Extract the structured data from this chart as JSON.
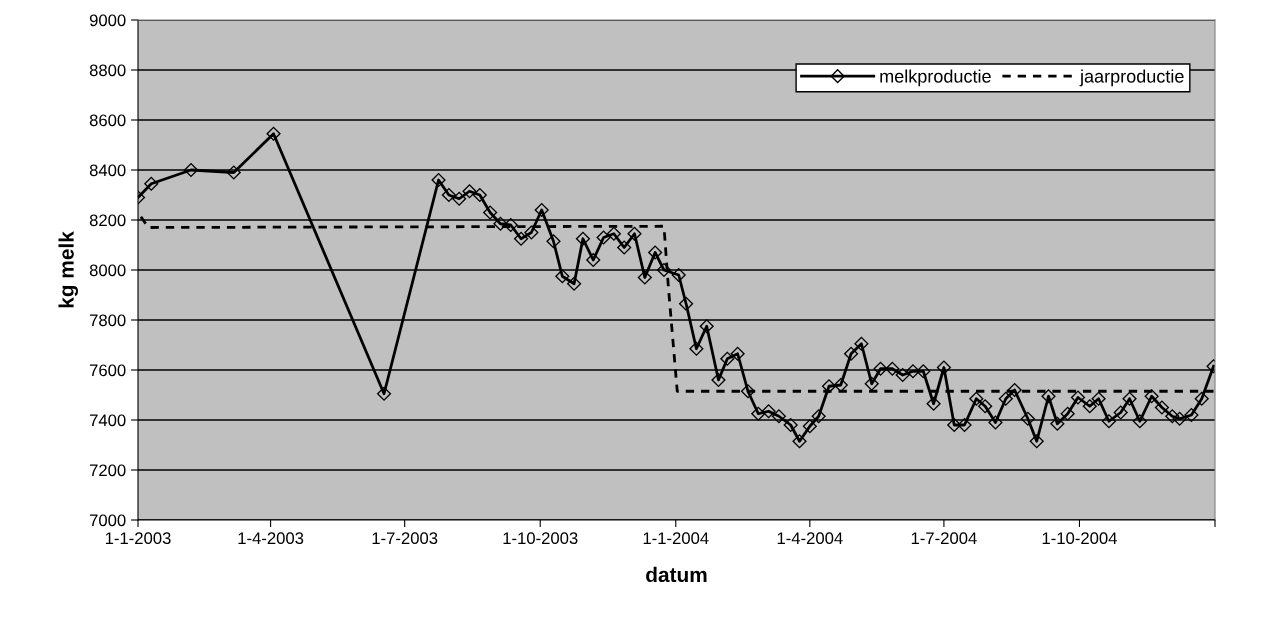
{
  "chart_data": {
    "type": "line",
    "xlabel": "datum",
    "ylabel": "kg melk",
    "xlim": [
      "2003-01-01",
      "2005-01-01"
    ],
    "xticks": [
      {
        "value": "2003-01-01",
        "label": "1-1-2003"
      },
      {
        "value": "2003-04-01",
        "label": "1-4-2003"
      },
      {
        "value": "2003-07-01",
        "label": "1-7-2003"
      },
      {
        "value": "2003-10-01",
        "label": "1-10-2003"
      },
      {
        "value": "2004-01-01",
        "label": "1-1-2004"
      },
      {
        "value": "2004-04-01",
        "label": "1-4-2004"
      },
      {
        "value": "2004-07-01",
        "label": "1-7-2004"
      },
      {
        "value": "2004-10-01",
        "label": "1-10-2004"
      },
      {
        "value": "2005-01-01",
        "label": null
      }
    ],
    "ylim": [
      7000,
      9000
    ],
    "yticks": [
      7000,
      7200,
      7400,
      7600,
      7800,
      8000,
      8200,
      8400,
      8600,
      8800,
      9000
    ],
    "grid": "y",
    "legend": "top right",
    "series": [
      {
        "name": "melkproductie",
        "color": "#000000",
        "marker": "diamond",
        "line_style": "solid",
        "x": [
          "2003-01-01",
          "2003-01-10",
          "2003-02-06",
          "2003-03-07",
          "2003-04-03",
          "2003-06-17",
          "2003-07-24",
          "2003-07-31",
          "2003-08-07",
          "2003-08-14",
          "2003-08-21",
          "2003-08-28",
          "2003-09-04",
          "2003-09-11",
          "2003-09-18",
          "2003-09-25",
          "2003-10-02",
          "2003-10-10",
          "2003-10-16",
          "2003-10-24",
          "2003-10-30",
          "2003-11-06",
          "2003-11-13",
          "2003-11-20",
          "2003-11-27",
          "2003-12-04",
          "2003-12-11",
          "2003-12-18",
          "2003-12-24",
          "2004-01-03",
          "2004-01-08",
          "2004-01-15",
          "2004-01-22",
          "2004-01-30",
          "2004-02-05",
          "2004-02-12",
          "2004-02-19",
          "2004-02-26",
          "2004-03-04",
          "2004-03-11",
          "2004-03-19",
          "2004-03-25",
          "2004-04-01",
          "2004-04-07",
          "2004-04-14",
          "2004-04-22",
          "2004-04-29",
          "2004-05-06",
          "2004-05-13",
          "2004-05-19",
          "2004-05-27",
          "2004-06-03",
          "2004-06-10",
          "2004-06-17",
          "2004-06-24",
          "2004-07-01",
          "2004-07-08",
          "2004-07-15",
          "2004-07-23",
          "2004-07-29",
          "2004-08-05",
          "2004-08-12",
          "2004-08-18",
          "2004-08-27",
          "2004-09-02",
          "2004-09-10",
          "2004-09-16",
          "2004-09-23",
          "2004-09-30",
          "2004-10-08",
          "2004-10-14",
          "2004-10-21",
          "2004-10-29",
          "2004-11-04",
          "2004-11-11",
          "2004-11-19",
          "2004-11-26",
          "2004-12-03",
          "2004-12-08",
          "2004-12-16",
          "2004-12-23",
          "2004-12-31"
        ],
        "values": [
          8290,
          8345,
          8400,
          8390,
          8545,
          7505,
          8360,
          8300,
          8285,
          8315,
          8300,
          8230,
          8185,
          8180,
          8125,
          8150,
          8240,
          8115,
          7975,
          7945,
          8125,
          8040,
          8130,
          8145,
          8090,
          8145,
          7970,
          8070,
          8000,
          7980,
          7865,
          7685,
          7775,
          7560,
          7645,
          7665,
          7515,
          7425,
          7435,
          7415,
          7380,
          7315,
          7375,
          7415,
          7535,
          7540,
          7665,
          7705,
          7545,
          7605,
          7605,
          7580,
          7595,
          7595,
          7465,
          7610,
          7380,
          7380,
          7485,
          7455,
          7390,
          7485,
          7520,
          7405,
          7315,
          7495,
          7385,
          7425,
          7490,
          7455,
          7485,
          7395,
          7430,
          7485,
          7395,
          7495,
          7450,
          7415,
          7405,
          7420,
          7485,
          7615
        ]
      },
      {
        "name": "jaarproductie",
        "color": "#000000",
        "marker": "none",
        "line_style": "dashed",
        "x": [
          "2003-01-01",
          "2003-01-08",
          "2003-12-24",
          "2003-12-27",
          "2004-01-02",
          "2004-12-31"
        ],
        "values": [
          8230,
          8170,
          8175,
          7930,
          7515,
          7515
        ]
      }
    ]
  }
}
